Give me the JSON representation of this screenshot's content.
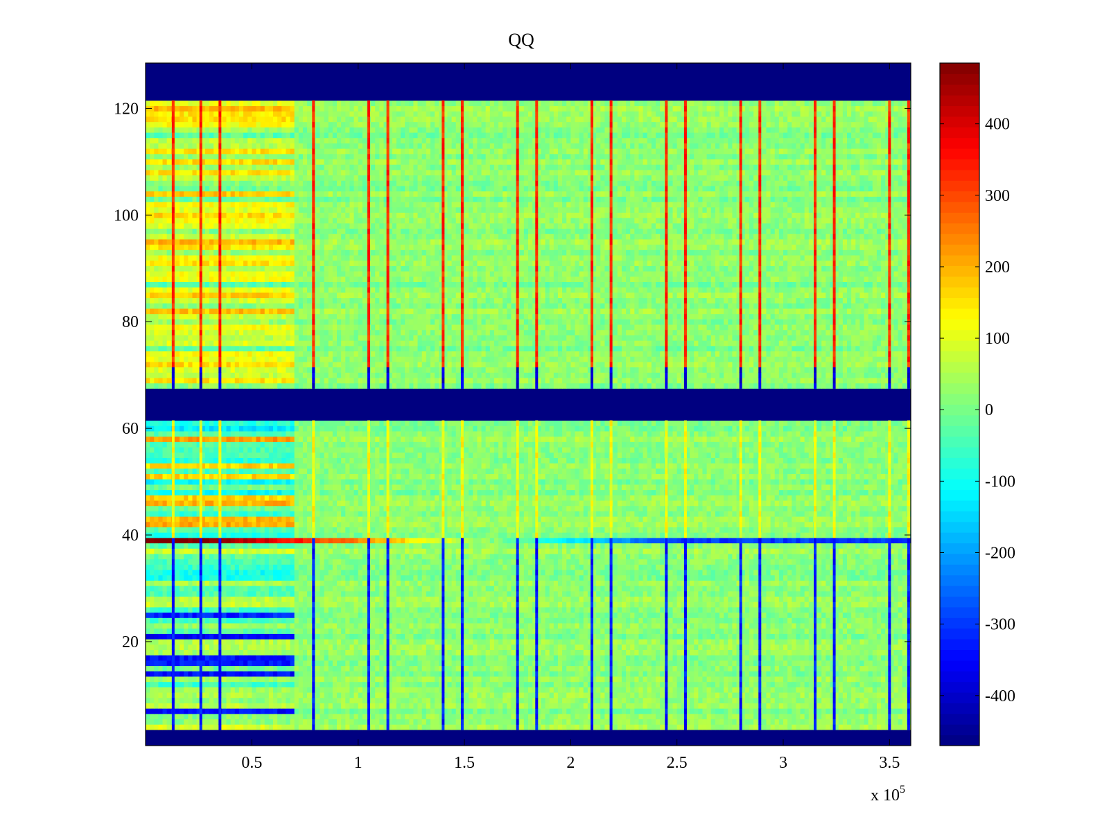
{
  "chart_data": {
    "type": "heatmap",
    "title": "QQ",
    "xlabel": "",
    "ylabel": "",
    "x_multiplier": "x 10",
    "x_multiplier_exponent": "5",
    "xlim": [
      0,
      3.6
    ],
    "ylim": [
      0.5,
      128.5
    ],
    "xticks": [
      {
        "value": 0.5,
        "label": "0.5"
      },
      {
        "value": 1,
        "label": "1"
      },
      {
        "value": 1.5,
        "label": "1.5"
      },
      {
        "value": 2,
        "label": "2"
      },
      {
        "value": 2.5,
        "label": "2.5"
      },
      {
        "value": 3,
        "label": "3"
      },
      {
        "value": 3.5,
        "label": "3.5"
      }
    ],
    "yticks": [
      {
        "value": 20,
        "label": "20"
      },
      {
        "value": 40,
        "label": "40"
      },
      {
        "value": 60,
        "label": "60"
      },
      {
        "value": 80,
        "label": "80"
      },
      {
        "value": 100,
        "label": "100"
      },
      {
        "value": 120,
        "label": "120"
      }
    ],
    "colorbar": {
      "clim": [
        -470,
        485
      ],
      "colormap": "jet",
      "ticks": [
        {
          "value": 400,
          "label": "400"
        },
        {
          "value": 300,
          "label": "300"
        },
        {
          "value": 200,
          "label": "200"
        },
        {
          "value": 100,
          "label": "100"
        },
        {
          "value": 0,
          "label": "0"
        },
        {
          "value": -100,
          "label": "-100"
        },
        {
          "value": -200,
          "label": "-200"
        },
        {
          "value": -300,
          "label": "-300"
        },
        {
          "value": -400,
          "label": "-400"
        }
      ]
    },
    "empty_row_bands": [
      [
        0.5,
        3.5
      ],
      [
        61.5,
        67.5
      ],
      [
        121.5,
        128.5
      ]
    ],
    "vertical_stripe_positions": [
      0.13,
      0.26,
      0.35,
      0.79,
      1.05,
      1.14,
      1.4,
      1.49,
      1.75,
      1.84,
      2.1,
      2.19,
      2.45,
      2.54,
      2.8,
      2.89,
      3.15,
      3.24,
      3.5,
      3.59
    ],
    "notable_row": {
      "y": 39,
      "values_start": 485,
      "values_end": -300
    },
    "grid": false
  }
}
